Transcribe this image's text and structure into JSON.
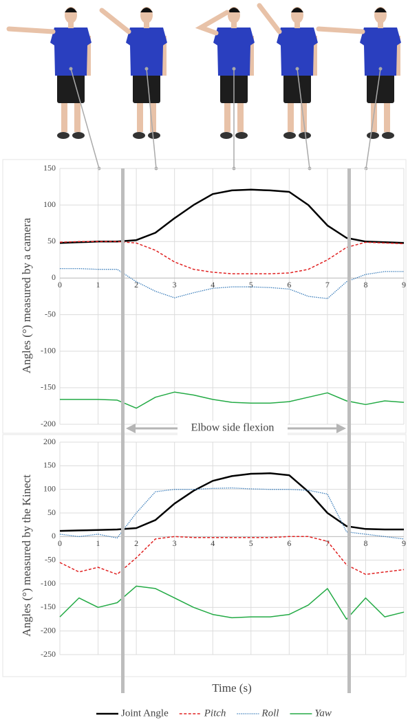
{
  "chart_data": [
    {
      "type": "line",
      "ylabel": "Angles (°) measured by a camera",
      "annotation": "Elbow side flexion",
      "x": [
        0,
        0.5,
        1,
        1.5,
        2,
        2.5,
        3,
        3.5,
        4,
        4.5,
        5,
        5.5,
        6,
        6.5,
        7,
        7.5,
        8,
        8.5,
        9
      ],
      "xlim": [
        0,
        9
      ],
      "xticks": [
        0,
        1,
        2,
        3,
        4,
        5,
        6,
        7,
        8,
        9
      ],
      "ylim": [
        -200,
        150
      ],
      "yticks": [
        -200,
        -150,
        -100,
        -50,
        0,
        50,
        100,
        150
      ],
      "grid": true,
      "series": [
        {
          "name": "Joint Angle",
          "color": "#000000",
          "dash": "solid",
          "width": 2.5,
          "italic": false,
          "values": [
            48,
            49,
            50,
            50,
            52,
            62,
            82,
            100,
            115,
            120,
            121,
            120,
            118,
            100,
            72,
            55,
            50,
            49,
            48
          ]
        },
        {
          "name": "Pitch",
          "color": "#e02020",
          "dash": "dashed",
          "width": 1.5,
          "italic": true,
          "values": [
            49,
            50,
            50,
            50,
            48,
            38,
            22,
            12,
            8,
            6,
            6,
            6,
            7,
            12,
            25,
            42,
            49,
            48,
            47
          ]
        },
        {
          "name": "Roll",
          "color": "#2e75b6",
          "dash": "dotted",
          "width": 1.3,
          "italic": true,
          "values": [
            13,
            13,
            12,
            12,
            -5,
            -18,
            -27,
            -20,
            -14,
            -12,
            -12,
            -13,
            -15,
            -25,
            -28,
            -5,
            5,
            9,
            9
          ]
        },
        {
          "name": "Yaw",
          "color": "#22aa44",
          "dash": "solid",
          "width": 1.5,
          "italic": true,
          "values": [
            -166,
            -166,
            -166,
            -167,
            -178,
            -163,
            -156,
            -160,
            -166,
            -170,
            -171,
            -171,
            -169,
            -163,
            -157,
            -168,
            -173,
            -168,
            -170
          ]
        }
      ]
    },
    {
      "type": "line",
      "ylabel": "Angles (°) measured by the Kinect",
      "xlabel": "Time (s)",
      "x": [
        0,
        0.5,
        1,
        1.5,
        2,
        2.5,
        3,
        3.5,
        4,
        4.5,
        5,
        5.5,
        6,
        6.5,
        7,
        7.5,
        8,
        8.5,
        9
      ],
      "xlim": [
        0,
        9
      ],
      "xticks": [
        0,
        1,
        2,
        3,
        4,
        5,
        6,
        7,
        8,
        9
      ],
      "ylim": [
        -250,
        200
      ],
      "yticks": [
        -250,
        -200,
        -150,
        -100,
        -50,
        0,
        50,
        100,
        150,
        200
      ],
      "grid": true,
      "series": [
        {
          "color": "#000000",
          "dash": "solid",
          "width": 2.5,
          "values": [
            12,
            13,
            14,
            15,
            18,
            35,
            70,
            97,
            118,
            128,
            133,
            134,
            130,
            95,
            50,
            22,
            16,
            15,
            15
          ]
        },
        {
          "color": "#e02020",
          "dash": "dashed",
          "width": 1.5,
          "values": [
            -55,
            -75,
            -65,
            -80,
            -45,
            -5,
            0,
            -2,
            -2,
            -2,
            -2,
            -2,
            0,
            0,
            -10,
            -60,
            -80,
            -75,
            -70
          ]
        },
        {
          "color": "#2e75b6",
          "dash": "dotted",
          "width": 1.3,
          "values": [
            5,
            0,
            5,
            -3,
            50,
            95,
            100,
            100,
            102,
            103,
            101,
            100,
            100,
            98,
            90,
            10,
            5,
            0,
            -5
          ]
        },
        {
          "color": "#22aa44",
          "dash": "solid",
          "width": 1.5,
          "values": [
            -170,
            -130,
            -150,
            -140,
            -105,
            -110,
            -130,
            -150,
            -165,
            -172,
            -170,
            -170,
            -165,
            -145,
            -110,
            -175,
            -130,
            -170,
            -160
          ]
        }
      ]
    }
  ]
}
